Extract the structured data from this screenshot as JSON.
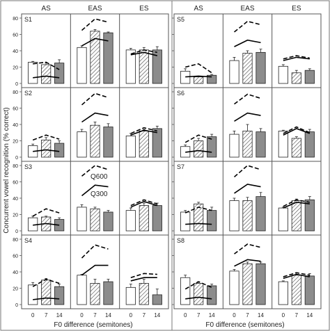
{
  "figure": {
    "ylabel": "Concurrent vowel recognition (% correct)",
    "xlabel": "F0 difference (semitones)",
    "columns": [
      "AS",
      "EAS",
      "ES"
    ],
    "xticks": [
      "0",
      "7",
      "14"
    ],
    "legend": {
      "upper": "Q600",
      "lower": "Q300"
    },
    "colors": {
      "bar0": "#ffffff",
      "bar7": "hatched",
      "bar14": "#8c8c8c",
      "line": "#000000",
      "frame": "#555555"
    }
  },
  "chart_data": [
    {
      "type": "bar",
      "subject": "S1",
      "panel": "AS",
      "categories": [
        "0",
        "7",
        "14"
      ],
      "values": [
        26,
        23,
        25
      ],
      "errors": [
        1,
        2,
        4
      ],
      "q600": [
        24,
        26,
        17
      ],
      "q300": [
        7,
        9,
        7
      ]
    },
    {
      "type": "bar",
      "subject": "S1",
      "panel": "EAS",
      "categories": [
        "0",
        "7",
        "14"
      ],
      "values": [
        44,
        64,
        62
      ],
      "errors": [
        2,
        2,
        1
      ],
      "q600": [
        65,
        79,
        75
      ],
      "q300": [
        46,
        55,
        52
      ]
    },
    {
      "type": "bar",
      "subject": "S1",
      "panel": "ES",
      "categories": [
        "0",
        "7",
        "14"
      ],
      "values": [
        41,
        41,
        41
      ],
      "errors": [
        2,
        3,
        4
      ],
      "q600": [
        36,
        41,
        38
      ],
      "q300": [
        35,
        38,
        34
      ]
    },
    {
      "type": "bar",
      "subject": "S2",
      "panel": "AS",
      "categories": [
        "0",
        "7",
        "14"
      ],
      "values": [
        14,
        21,
        17
      ],
      "errors": [
        2,
        3,
        3
      ],
      "q600": [
        21,
        27,
        22
      ],
      "q300": [
        7,
        9,
        7
      ]
    },
    {
      "type": "bar",
      "subject": "S2",
      "panel": "EAS",
      "categories": [
        "0",
        "7",
        "14"
      ],
      "values": [
        31,
        39,
        37
      ],
      "errors": [
        3,
        4,
        4
      ],
      "q600": [
        64,
        78,
        73
      ],
      "q300": [
        43,
        54,
        51
      ]
    },
    {
      "type": "bar",
      "subject": "S2",
      "panel": "ES",
      "categories": [
        "0",
        "7",
        "14"
      ],
      "values": [
        26,
        32,
        35
      ],
      "errors": [
        3,
        2,
        3
      ],
      "q600": [
        29,
        36,
        32
      ],
      "q300": [
        27,
        33,
        30
      ]
    },
    {
      "type": "bar",
      "subject": "S3",
      "panel": "AS",
      "categories": [
        "0",
        "7",
        "14"
      ],
      "values": [
        16,
        17,
        14
      ],
      "errors": [
        2,
        1,
        2
      ],
      "q600": [
        18,
        27,
        22
      ],
      "q300": [
        7,
        9,
        7
      ]
    },
    {
      "type": "bar",
      "subject": "S3",
      "panel": "EAS",
      "categories": [
        "0",
        "7",
        "14"
      ],
      "values": [
        29,
        27,
        23
      ],
      "errors": [
        3,
        2,
        2
      ],
      "q600": [
        67,
        80,
        75
      ],
      "q300": [
        43,
        56,
        54
      ]
    },
    {
      "type": "bar",
      "subject": "S3",
      "panel": "ES",
      "categories": [
        "0",
        "7",
        "14"
      ],
      "values": [
        25,
        31,
        31
      ],
      "errors": [
        3,
        3,
        3
      ],
      "q600": [
        31,
        38,
        33
      ],
      "q300": [
        29,
        36,
        31
      ]
    },
    {
      "type": "bar",
      "subject": "S4",
      "panel": "AS",
      "categories": [
        "0",
        "7",
        "14"
      ],
      "values": [
        24,
        30,
        22
      ],
      "errors": [
        3,
        2,
        3
      ],
      "q600": [
        22,
        31,
        26
      ],
      "q300": [
        6,
        8,
        7
      ]
    },
    {
      "type": "bar",
      "subject": "S4",
      "panel": "EAS",
      "categories": [
        "0",
        "7",
        "14"
      ],
      "values": [
        36,
        26,
        28
      ],
      "errors": [
        1,
        5,
        3
      ],
      "q600": [
        57,
        73,
        68
      ],
      "q300": [
        36,
        48,
        48
      ]
    },
    {
      "type": "bar",
      "subject": "S4",
      "panel": "ES",
      "categories": [
        "0",
        "7",
        "14"
      ],
      "values": [
        21,
        26,
        12
      ],
      "errors": [
        4,
        5,
        7
      ],
      "q600": [
        33,
        38,
        37
      ],
      "q300": [
        29,
        33,
        33
      ]
    },
    {
      "type": "bar",
      "subject": "S5",
      "panel": "AS",
      "categories": [
        "0",
        "7",
        "14"
      ],
      "values": [
        15,
        8,
        10
      ],
      "errors": [
        3,
        1,
        1
      ],
      "q600": [
        20,
        24,
        13
      ],
      "q300": [
        8,
        9,
        8
      ]
    },
    {
      "type": "bar",
      "subject": "S5",
      "panel": "EAS",
      "categories": [
        "0",
        "7",
        "14"
      ],
      "values": [
        28,
        37,
        38
      ],
      "errors": [
        4,
        3,
        4
      ],
      "q600": [
        63,
        76,
        72
      ],
      "q300": [
        45,
        53,
        50
      ]
    },
    {
      "type": "bar",
      "subject": "S5",
      "panel": "ES",
      "categories": [
        "0",
        "7",
        "14"
      ],
      "values": [
        21,
        13,
        16
      ],
      "errors": [
        2,
        3,
        2
      ],
      "q600": [
        30,
        34,
        31
      ],
      "q300": [
        28,
        32,
        30
      ]
    },
    {
      "type": "bar",
      "subject": "S6",
      "panel": "AS",
      "categories": [
        "0",
        "7",
        "14"
      ],
      "values": [
        13,
        20,
        25
      ],
      "errors": [
        2,
        3,
        3
      ],
      "q600": [
        18,
        27,
        22
      ],
      "q300": [
        6,
        8,
        6
      ]
    },
    {
      "type": "bar",
      "subject": "S6",
      "panel": "EAS",
      "categories": [
        "0",
        "7",
        "14"
      ],
      "values": [
        28,
        32,
        31
      ],
      "errors": [
        4,
        8,
        4
      ],
      "q600": [
        65,
        77,
        72
      ],
      "q300": [
        44,
        54,
        51
      ]
    },
    {
      "type": "bar",
      "subject": "S6",
      "panel": "ES",
      "categories": [
        "0",
        "7",
        "14"
      ],
      "values": [
        32,
        23,
        31
      ],
      "errors": [
        1,
        2,
        3
      ],
      "q600": [
        29,
        37,
        30
      ],
      "q300": [
        27,
        35,
        29
      ]
    },
    {
      "type": "bar",
      "subject": "S7",
      "panel": "AS",
      "categories": [
        "0",
        "7",
        "14"
      ],
      "values": [
        23,
        33,
        25
      ],
      "errors": [
        2,
        2,
        4
      ],
      "q600": [
        22,
        29,
        25
      ],
      "q300": [
        8,
        9,
        8
      ]
    },
    {
      "type": "bar",
      "subject": "S7",
      "panel": "EAS",
      "categories": [
        "0",
        "7",
        "14"
      ],
      "values": [
        37,
        37,
        42
      ],
      "errors": [
        3,
        4,
        5
      ],
      "q600": [
        66,
        80,
        75
      ],
      "q300": [
        46,
        57,
        54
      ]
    },
    {
      "type": "bar",
      "subject": "S7",
      "panel": "ES",
      "categories": [
        "0",
        "7",
        "14"
      ],
      "values": [
        28,
        37,
        38
      ],
      "errors": [
        1,
        2,
        4
      ],
      "q600": [
        30,
        38,
        35
      ],
      "q300": [
        28,
        35,
        33
      ]
    },
    {
      "type": "bar",
      "subject": "S8",
      "panel": "AS",
      "categories": [
        "0",
        "7",
        "14"
      ],
      "values": [
        33,
        26,
        23
      ],
      "errors": [
        3,
        2,
        2
      ],
      "q600": [
        19,
        28,
        21
      ],
      "q300": [
        7,
        9,
        7
      ]
    },
    {
      "type": "bar",
      "subject": "S8",
      "panel": "EAS",
      "categories": [
        "0",
        "7",
        "14"
      ],
      "values": [
        41,
        50,
        50
      ],
      "errors": [
        2,
        2,
        2
      ],
      "q600": [
        62,
        74,
        70
      ],
      "q300": [
        47,
        55,
        53
      ]
    },
    {
      "type": "bar",
      "subject": "S8",
      "panel": "ES",
      "categories": [
        "0",
        "7",
        "14"
      ],
      "values": [
        28,
        36,
        35
      ],
      "errors": [
        1,
        3,
        3
      ],
      "q600": [
        34,
        39,
        36
      ],
      "q300": [
        32,
        37,
        34
      ]
    }
  ]
}
